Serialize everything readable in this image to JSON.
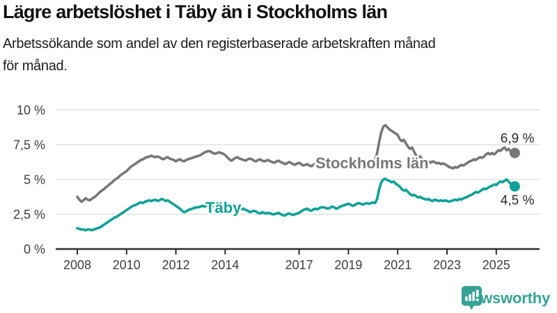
{
  "header": {
    "title": "Lägre arbetslöshet i Täby än i Stockholms län",
    "subtitle_lines": [
      "Arbetssökande som andel av den registerbaserade arbetskraften månad",
      "för månad."
    ]
  },
  "chart_data": {
    "type": "line",
    "unit": "%",
    "grid": true,
    "x_start_year": 2008,
    "x_frequency": "monthly",
    "x_end": "2025-10",
    "ylim": [
      0,
      10.5
    ],
    "y_ticks": [
      {
        "value": 10,
        "label": "10 %"
      },
      {
        "value": 7.5,
        "label": "7,5 %"
      },
      {
        "value": 5,
        "label": "5 %"
      },
      {
        "value": 2.5,
        "label": "2,5 %"
      },
      {
        "value": 0,
        "label": "0 %"
      }
    ],
    "x_ticks": [
      {
        "value": 2008,
        "label": "2008"
      },
      {
        "value": 2010,
        "label": "2010"
      },
      {
        "value": 2012,
        "label": "2012"
      },
      {
        "value": 2014,
        "label": "2014"
      },
      {
        "value": 2017,
        "label": "2017"
      },
      {
        "value": 2019,
        "label": "2019"
      },
      {
        "value": 2021,
        "label": "2021"
      },
      {
        "value": 2023,
        "label": "2023"
      },
      {
        "value": 2025,
        "label": "2025"
      }
    ],
    "series": [
      {
        "name": "Stockholms län",
        "color": "#77777b",
        "end_label": "6,9 %",
        "end_value": 6.9,
        "end_label_position": "above",
        "label_pos": {
          "x": 2017.66,
          "y": 5.8
        },
        "values": [
          3.75,
          3.55,
          3.4,
          3.5,
          3.65,
          3.55,
          3.5,
          3.6,
          3.7,
          3.8,
          3.95,
          4.1,
          4.2,
          4.3,
          4.45,
          4.55,
          4.7,
          4.8,
          4.95,
          5.05,
          5.15,
          5.3,
          5.4,
          5.5,
          5.6,
          5.75,
          5.9,
          6.0,
          6.1,
          6.2,
          6.3,
          6.4,
          6.45,
          6.55,
          6.6,
          6.65,
          6.7,
          6.65,
          6.6,
          6.65,
          6.6,
          6.5,
          6.45,
          6.55,
          6.6,
          6.5,
          6.45,
          6.4,
          6.3,
          6.4,
          6.45,
          6.35,
          6.3,
          6.4,
          6.45,
          6.5,
          6.55,
          6.6,
          6.65,
          6.7,
          6.75,
          6.85,
          6.95,
          7.0,
          7.05,
          7.0,
          6.9,
          6.85,
          6.9,
          6.95,
          6.9,
          6.85,
          6.75,
          6.6,
          6.45,
          6.35,
          6.45,
          6.55,
          6.6,
          6.5,
          6.45,
          6.4,
          6.35,
          6.45,
          6.5,
          6.45,
          6.35,
          6.3,
          6.4,
          6.45,
          6.35,
          6.3,
          6.35,
          6.4,
          6.3,
          6.25,
          6.2,
          6.3,
          6.35,
          6.25,
          6.2,
          6.1,
          6.15,
          6.25,
          6.2,
          6.1,
          6.05,
          6.15,
          6.2,
          6.1,
          6.0,
          6.05,
          6.1,
          6.0,
          5.95,
          6.05,
          6.1,
          6.05,
          5.95,
          6.0,
          6.05,
          6.0,
          5.9,
          5.95,
          6.05,
          6.0,
          5.9,
          5.95,
          6.0,
          5.95,
          5.9,
          5.95,
          6.0,
          6.05,
          5.95,
          5.9,
          6.0,
          6.05,
          6.1,
          6.05,
          6.0,
          6.1,
          6.15,
          6.2,
          6.3,
          6.4,
          6.9,
          7.7,
          8.4,
          8.8,
          8.9,
          8.75,
          8.6,
          8.5,
          8.4,
          8.3,
          8.2,
          7.9,
          7.75,
          7.85,
          7.6,
          7.35,
          7.2,
          7.3,
          7.0,
          6.7,
          6.55,
          6.65,
          6.45,
          6.3,
          6.4,
          6.3,
          6.2,
          6.3,
          6.25,
          6.15,
          6.2,
          6.1,
          6.15,
          6.1,
          6.0,
          5.9,
          5.85,
          5.8,
          5.9,
          5.85,
          5.95,
          6.05,
          6.0,
          6.1,
          6.2,
          6.3,
          6.35,
          6.45,
          6.4,
          6.5,
          6.6,
          6.55,
          6.65,
          6.8,
          6.9,
          6.8,
          6.9,
          6.8,
          6.95,
          7.1,
          7.05,
          7.2,
          7.3,
          7.1,
          7.2,
          7.0,
          6.95,
          6.9
        ]
      },
      {
        "name": "Täby",
        "color": "#0fa096",
        "end_label": "4,5 %",
        "end_value": 4.5,
        "end_label_position": "below",
        "label_pos": {
          "x": 2013.2,
          "y": 2.6
        },
        "values": [
          1.5,
          1.45,
          1.4,
          1.4,
          1.35,
          1.4,
          1.4,
          1.35,
          1.4,
          1.45,
          1.5,
          1.55,
          1.65,
          1.75,
          1.85,
          1.95,
          2.05,
          2.15,
          2.25,
          2.3,
          2.4,
          2.5,
          2.6,
          2.7,
          2.8,
          2.9,
          3.0,
          3.1,
          3.15,
          3.2,
          3.3,
          3.35,
          3.3,
          3.4,
          3.45,
          3.5,
          3.45,
          3.5,
          3.55,
          3.45,
          3.5,
          3.6,
          3.55,
          3.45,
          3.5,
          3.4,
          3.3,
          3.2,
          3.1,
          3.0,
          2.9,
          2.75,
          2.65,
          2.7,
          2.8,
          2.85,
          2.9,
          2.95,
          3.0,
          3.0,
          3.05,
          3.1,
          3.05,
          3.15,
          3.2,
          3.25,
          3.15,
          3.05,
          3.1,
          3.05,
          3.0,
          3.05,
          3.0,
          2.9,
          2.85,
          2.9,
          3.0,
          3.05,
          2.95,
          2.9,
          2.85,
          2.9,
          2.8,
          2.75,
          2.65,
          2.7,
          2.75,
          2.7,
          2.6,
          2.55,
          2.65,
          2.6,
          2.55,
          2.6,
          2.55,
          2.5,
          2.5,
          2.55,
          2.6,
          2.5,
          2.45,
          2.4,
          2.5,
          2.55,
          2.5,
          2.45,
          2.5,
          2.55,
          2.6,
          2.7,
          2.8,
          2.85,
          2.9,
          2.8,
          2.75,
          2.85,
          2.9,
          2.85,
          2.95,
          3.0,
          3.0,
          2.95,
          2.9,
          2.95,
          3.05,
          3.0,
          2.9,
          2.95,
          3.05,
          3.1,
          3.15,
          3.2,
          3.25,
          3.2,
          3.1,
          3.15,
          3.25,
          3.3,
          3.25,
          3.2,
          3.25,
          3.3,
          3.25,
          3.3,
          3.35,
          3.3,
          3.6,
          4.3,
          4.8,
          5.0,
          5.05,
          4.95,
          4.9,
          4.8,
          4.85,
          4.7,
          4.6,
          4.5,
          4.3,
          4.2,
          4.25,
          4.1,
          3.95,
          3.85,
          3.9,
          3.8,
          3.7,
          3.75,
          3.65,
          3.6,
          3.55,
          3.6,
          3.5,
          3.45,
          3.55,
          3.5,
          3.45,
          3.5,
          3.45,
          3.5,
          3.45,
          3.4,
          3.45,
          3.5,
          3.55,
          3.5,
          3.6,
          3.55,
          3.65,
          3.7,
          3.75,
          3.85,
          3.9,
          4.0,
          4.1,
          4.05,
          4.15,
          4.25,
          4.35,
          4.3,
          4.4,
          4.5,
          4.55,
          4.65,
          4.6,
          4.75,
          4.85,
          4.8,
          4.9,
          5.0,
          4.85,
          4.7,
          4.6,
          4.5
        ]
      }
    ]
  },
  "branding": {
    "logo_text": "Newsworthy",
    "logo_color": "#36a296",
    "logo_icon": "newsworthy-pin-barchart-icon"
  }
}
